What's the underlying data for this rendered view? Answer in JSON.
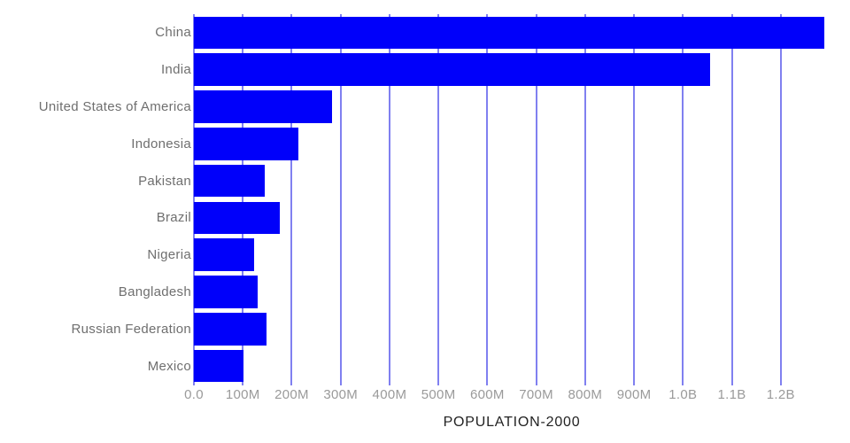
{
  "chart_data": {
    "type": "bar",
    "orientation": "horizontal",
    "title": "POPULATION-2000",
    "categories": [
      "China",
      "India",
      "United States of America",
      "Indonesia",
      "Pakistan",
      "Brazil",
      "Nigeria",
      "Bangladesh",
      "Russian Federation",
      "Mexico"
    ],
    "values": [
      1290000000,
      1055000000,
      282000000,
      214000000,
      144000000,
      176000000,
      124000000,
      130000000,
      149000000,
      102000000
    ],
    "xlabel": "POPULATION-2000",
    "ylabel": "",
    "xlim": [
      0,
      1300000000
    ],
    "xticks": [
      {
        "value": 0,
        "label": "0.0"
      },
      {
        "value": 100000000,
        "label": "100M"
      },
      {
        "value": 200000000,
        "label": "200M"
      },
      {
        "value": 300000000,
        "label": "300M"
      },
      {
        "value": 400000000,
        "label": "400M"
      },
      {
        "value": 500000000,
        "label": "500M"
      },
      {
        "value": 600000000,
        "label": "600M"
      },
      {
        "value": 700000000,
        "label": "700M"
      },
      {
        "value": 800000000,
        "label": "800M"
      },
      {
        "value": 900000000,
        "label": "900M"
      },
      {
        "value": 1000000000,
        "label": "1.0B"
      },
      {
        "value": 1100000000,
        "label": "1.1B"
      },
      {
        "value": 1200000000,
        "label": "1.2B"
      }
    ],
    "grid": true,
    "legend": "none",
    "colors": {
      "bar": "#0000fa",
      "gridline": "#8080f0",
      "category_label": "#6f6f6f",
      "tick_label": "#9a9a9a",
      "title": "#222222",
      "background": "#ffffff"
    }
  }
}
